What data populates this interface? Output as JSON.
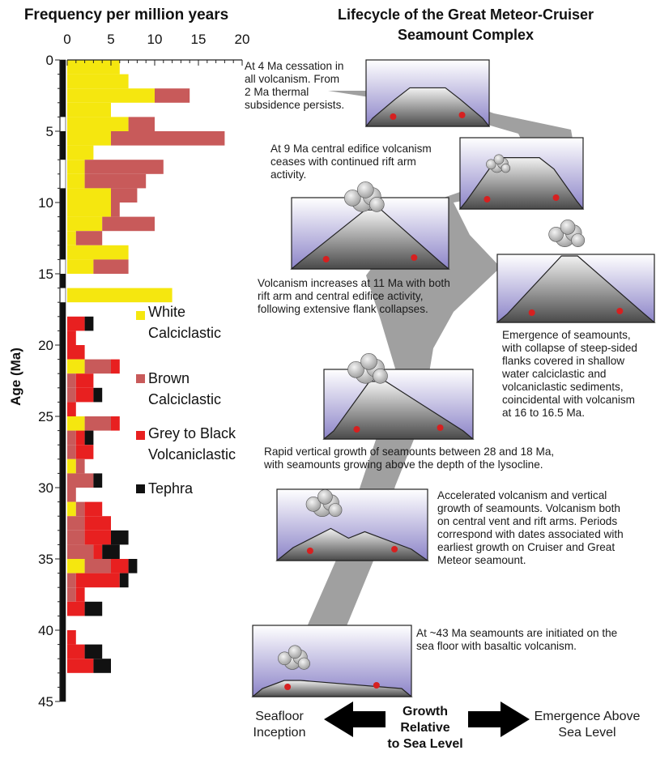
{
  "chart_data": {
    "type": "bar",
    "orientation": "horizontal-stacked",
    "title": "Frequency per million years",
    "ylabel": "Age (Ma)",
    "xlim": [
      0,
      20
    ],
    "ylim": [
      0,
      45
    ],
    "x_ticks": [
      "0",
      "5",
      "10",
      "15",
      "20"
    ],
    "y_ticks": [
      "0",
      "5",
      "10",
      "15",
      "20",
      "25",
      "30",
      "35",
      "40",
      "45"
    ],
    "legend": [
      {
        "name": "White Calciclastic",
        "color": "#f5e70f"
      },
      {
        "name": "Brown Calciclastic",
        "color": "#c85a5a"
      },
      {
        "name": "Grey to Black Volcaniclastic",
        "color": "#e82020"
      },
      {
        "name": "Tephra",
        "color": "#111111"
      }
    ],
    "bins_ma": [
      {
        "from": 0,
        "to": 1,
        "yellow": 6,
        "brown": 0,
        "red": 0,
        "black": 0
      },
      {
        "from": 1,
        "to": 2,
        "yellow": 7,
        "brown": 0,
        "red": 0,
        "black": 0
      },
      {
        "from": 2,
        "to": 3,
        "yellow": 10,
        "brown": 4,
        "red": 0,
        "black": 0
      },
      {
        "from": 3,
        "to": 4,
        "yellow": 5,
        "brown": 0,
        "red": 0,
        "black": 0
      },
      {
        "from": 4,
        "to": 5,
        "yellow": 7,
        "brown": 3,
        "red": 0,
        "black": 0
      },
      {
        "from": 5,
        "to": 6,
        "yellow": 5,
        "brown": 13,
        "red": 0,
        "black": 0
      },
      {
        "from": 6,
        "to": 7,
        "yellow": 3,
        "brown": 0,
        "red": 0,
        "black": 0
      },
      {
        "from": 7,
        "to": 8,
        "yellow": 2,
        "brown": 9,
        "red": 0,
        "black": 0
      },
      {
        "from": 8,
        "to": 9,
        "yellow": 2,
        "brown": 7,
        "red": 0,
        "black": 0
      },
      {
        "from": 9,
        "to": 10,
        "yellow": 5,
        "brown": 3,
        "red": 0,
        "black": 0
      },
      {
        "from": 10,
        "to": 11,
        "yellow": 5,
        "brown": 1,
        "red": 0,
        "black": 0
      },
      {
        "from": 11,
        "to": 12,
        "yellow": 4,
        "brown": 6,
        "red": 0,
        "black": 0
      },
      {
        "from": 12,
        "to": 13,
        "yellow": 1,
        "brown": 3,
        "red": 0,
        "black": 0
      },
      {
        "from": 13,
        "to": 14,
        "yellow": 7,
        "brown": 0,
        "red": 0,
        "black": 0
      },
      {
        "from": 14,
        "to": 15,
        "yellow": 3,
        "brown": 4,
        "red": 0,
        "black": 0
      },
      {
        "from": 16,
        "to": 17,
        "yellow": 12,
        "brown": 0,
        "red": 0,
        "black": 0
      },
      {
        "from": 18,
        "to": 19,
        "yellow": 0,
        "brown": 0,
        "red": 2,
        "black": 1
      },
      {
        "from": 19,
        "to": 20,
        "yellow": 0,
        "brown": 0,
        "red": 1,
        "black": 0
      },
      {
        "from": 20,
        "to": 21,
        "yellow": 0,
        "brown": 0,
        "red": 2,
        "black": 0
      },
      {
        "from": 21,
        "to": 22,
        "yellow": 2,
        "brown": 3,
        "red": 1,
        "black": 0
      },
      {
        "from": 22,
        "to": 23,
        "yellow": 0,
        "brown": 1,
        "red": 2,
        "black": 0
      },
      {
        "from": 23,
        "to": 24,
        "yellow": 0,
        "brown": 1,
        "red": 2,
        "black": 1
      },
      {
        "from": 24,
        "to": 25,
        "yellow": 0,
        "brown": 0,
        "red": 1,
        "black": 0
      },
      {
        "from": 25,
        "to": 26,
        "yellow": 2,
        "brown": 3,
        "red": 1,
        "black": 0
      },
      {
        "from": 26,
        "to": 27,
        "yellow": 0,
        "brown": 1,
        "red": 1,
        "black": 1
      },
      {
        "from": 27,
        "to": 28,
        "yellow": 0,
        "brown": 1,
        "red": 2,
        "black": 0
      },
      {
        "from": 28,
        "to": 29,
        "yellow": 1,
        "brown": 1,
        "red": 0,
        "black": 0
      },
      {
        "from": 29,
        "to": 30,
        "yellow": 0,
        "brown": 3,
        "red": 0,
        "black": 1
      },
      {
        "from": 30,
        "to": 31,
        "yellow": 0,
        "brown": 1,
        "red": 0,
        "black": 0
      },
      {
        "from": 31,
        "to": 32,
        "yellow": 1,
        "brown": 1,
        "red": 2,
        "black": 0
      },
      {
        "from": 32,
        "to": 33,
        "yellow": 0,
        "brown": 2,
        "red": 3,
        "black": 0
      },
      {
        "from": 33,
        "to": 34,
        "yellow": 0,
        "brown": 2,
        "red": 3,
        "black": 2
      },
      {
        "from": 34,
        "to": 35,
        "yellow": 0,
        "brown": 3,
        "red": 1,
        "black": 2
      },
      {
        "from": 35,
        "to": 36,
        "yellow": 2,
        "brown": 3,
        "red": 2,
        "black": 1
      },
      {
        "from": 36,
        "to": 37,
        "yellow": 0,
        "brown": 1,
        "red": 5,
        "black": 1
      },
      {
        "from": 37,
        "to": 38,
        "yellow": 0,
        "brown": 1,
        "red": 1,
        "black": 0
      },
      {
        "from": 38,
        "to": 39,
        "yellow": 0,
        "brown": 0,
        "red": 2,
        "black": 2
      },
      {
        "from": 40,
        "to": 41,
        "yellow": 0,
        "brown": 0,
        "red": 1,
        "black": 0
      },
      {
        "from": 41,
        "to": 42,
        "yellow": 0,
        "brown": 0,
        "red": 2,
        "black": 2
      },
      {
        "from": 42,
        "to": 43,
        "yellow": 0,
        "brown": 0,
        "red": 3,
        "black": 2
      }
    ],
    "strat_column_black": [
      [
        0,
        4
      ],
      [
        5,
        7
      ],
      [
        9,
        14
      ],
      [
        15,
        16
      ],
      [
        17,
        45
      ]
    ]
  },
  "panel": {
    "title_line1": "Lifecycle of the Great Meteor-Cruiser",
    "title_line2": "Seamount Complex",
    "stages": [
      {
        "id": "s1",
        "text": [
          "At 4 Ma cessation in",
          "all volcanism. From",
          "2 Ma thermal",
          "subsidence persists."
        ]
      },
      {
        "id": "s2",
        "text": [
          "At 9 Ma central edifice volcanism",
          "ceases with continued rift arm",
          "activity."
        ]
      },
      {
        "id": "s3",
        "text": [
          "Volcanism increases at 11 Ma with both",
          "rift arm and central edifice activity,",
          "following extensive flank collapses."
        ]
      },
      {
        "id": "s4",
        "text": [
          "Emergence of seamounts,",
          "with collapse of steep-sided",
          "flanks covered in shallow",
          "water calciclastic and",
          "volcaniclastic sediments,",
          "coincidental with volcanism",
          "at 16 to 16.5 Ma."
        ]
      },
      {
        "id": "s5",
        "text": [
          "Rapid vertical growth of seamounts between 28 and 18 Ma,",
          "with seamounts growing above the depth of the lysocline."
        ]
      },
      {
        "id": "s6",
        "text": [
          "Accelerated volcanism and vertical",
          "growth of seamounts. Volcanism both",
          "on central vent and rift arms. Periods",
          "correspond with dates associated with",
          "earliest growth on Cruiser and Great",
          "Meteor seamount."
        ]
      },
      {
        "id": "s7",
        "text": [
          "At ~43 Ma seamounts are initiated on the",
          "sea floor with basaltic volcanism."
        ]
      }
    ],
    "arrow": {
      "left_label": [
        "Seafloor",
        "Inception"
      ],
      "center_label": [
        "Growth",
        "Relative",
        "to Sea Level"
      ],
      "right_label": [
        "Emergence Above",
        "Sea Level"
      ]
    }
  }
}
